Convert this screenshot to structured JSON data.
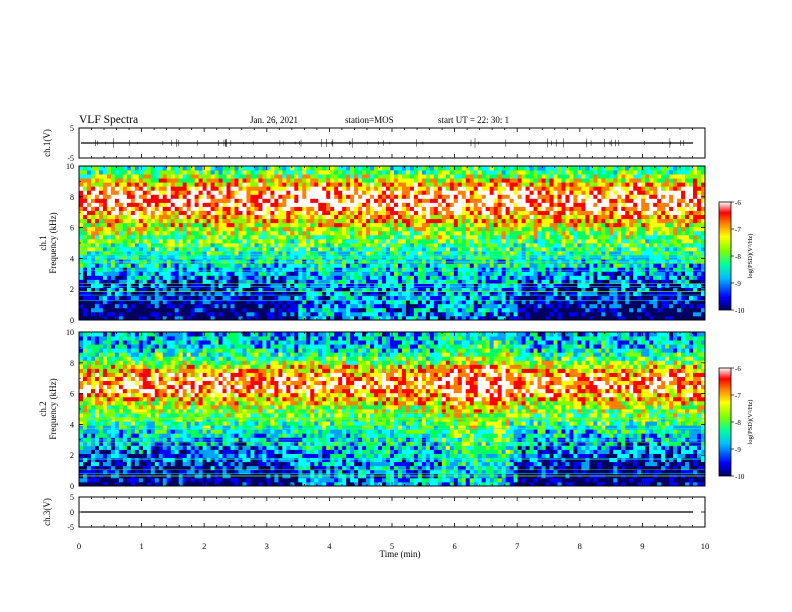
{
  "header": {
    "title": "VLF Spectra",
    "date": "Jan. 26, 2021",
    "station": "station=MOS",
    "start": "start UT =  22: 30: 1"
  },
  "colorbar_label": "log(PSD)(V²/Hz)",
  "colormap": [
    "#000060",
    "#0000ff",
    "#00a0ff",
    "#00ffff",
    "#00ff60",
    "#80ff00",
    "#ffff00",
    "#ff8000",
    "#ff0000",
    "#ffffff"
  ],
  "chart_data": [
    {
      "type": "line",
      "name": "ch1-waveform",
      "ylabel": "ch.1(V)",
      "ylim": [
        -5,
        5
      ],
      "yticks": [
        "5",
        "-5"
      ],
      "xlim": [
        0,
        10
      ],
      "level": 0,
      "grid": false
    },
    {
      "type": "heatmap",
      "name": "ch1-spectrogram",
      "ylabel": "ch.1\nFrequency (kHz)",
      "ylabel_lines": [
        "ch.1",
        "Frequency (kHz)"
      ],
      "ylim": [
        0,
        10
      ],
      "yticks": [
        "10",
        "8",
        "6",
        "4",
        "2",
        "0"
      ],
      "xlim": [
        0,
        10
      ],
      "zlim": [
        -10,
        -6
      ],
      "zticks": [
        "-6",
        "-7",
        "-8",
        "-9",
        "-10"
      ],
      "zlabel": "log(PSD)(V²/Hz)",
      "note": "strong emission 6–9 kHz; weak below 4 kHz outside 3.5–7 min"
    },
    {
      "type": "heatmap",
      "name": "ch2-spectrogram",
      "ylabel": "ch.2\nFrequency (kHz)",
      "ylabel_lines": [
        "ch.2",
        "Frequency (kHz)"
      ],
      "ylim": [
        0,
        10
      ],
      "yticks": [
        "10",
        "8",
        "6",
        "4",
        "2",
        "0"
      ],
      "xlim": [
        0,
        10
      ],
      "zlim": [
        -10,
        -6
      ],
      "zticks": [
        "-6",
        "-7",
        "-8",
        "-9",
        "-10"
      ],
      "zlabel": "log(PSD)(V²/Hz)",
      "note": "strong emission 6–8 kHz; enhanced broadband 5.8–6.9 min"
    },
    {
      "type": "line",
      "name": "ch3-waveform",
      "ylabel": "ch.3(V)",
      "ylim": [
        -5,
        5
      ],
      "yticks": [
        "5",
        "0",
        "-5"
      ],
      "xlim": [
        0,
        10
      ],
      "level": 0,
      "grid": false
    }
  ],
  "xaxis": {
    "label": "Time (min)",
    "ticks": [
      "0",
      "1",
      "2",
      "3",
      "4",
      "5",
      "6",
      "7",
      "8",
      "9",
      "10"
    ],
    "range": [
      0,
      10
    ]
  }
}
